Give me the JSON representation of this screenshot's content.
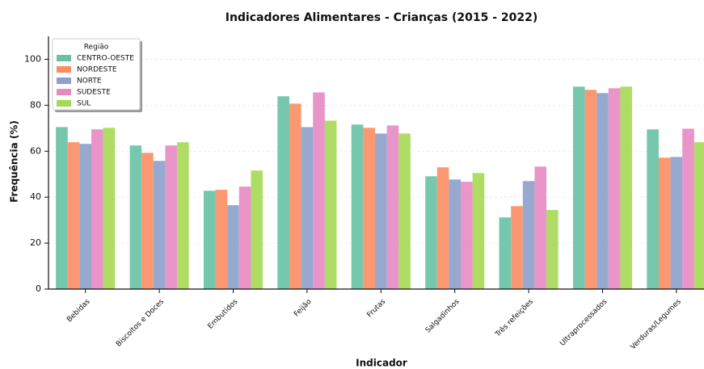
{
  "chart_data": {
    "type": "bar",
    "title": "Indicadores Alimentares - Crianças (2015 - 2022)",
    "x_label": "Indicador",
    "y_label": "Frequência (%)",
    "legend_title": "Região",
    "legend_position": "upper left",
    "grid": true,
    "categories": [
      "Bebidas",
      "Biscoitos e Doces",
      "Embutidos",
      "Feijão",
      "Frutas",
      "Salgadinhos",
      "Três refeições",
      "Ultraprocessados",
      "Verduras/Legumes"
    ],
    "series": [
      {
        "name": "CENTRO-OESTE",
        "color": "#66c2a5",
        "values": [
          70.5,
          62.5,
          42.8,
          83.9,
          71.6,
          49.1,
          31.2,
          88.1,
          69.5
        ]
      },
      {
        "name": "NORDESTE",
        "color": "#fc8d62",
        "values": [
          63.9,
          59.3,
          43.2,
          80.7,
          70.2,
          53.0,
          36.1,
          86.7,
          57.2
        ]
      },
      {
        "name": "NORTE",
        "color": "#8da0cb",
        "values": [
          63.2,
          55.8,
          36.5,
          70.5,
          67.7,
          47.7,
          47.0,
          85.3,
          57.5
        ]
      },
      {
        "name": "SUDESTE",
        "color": "#e78ac3",
        "values": [
          69.5,
          62.5,
          44.6,
          85.6,
          71.2,
          46.7,
          53.3,
          87.4,
          69.8
        ]
      },
      {
        "name": "SUL",
        "color": "#a6d854",
        "values": [
          70.2,
          63.9,
          51.6,
          73.3,
          67.7,
          50.5,
          34.4,
          88.1,
          63.9
        ]
      }
    ],
    "ylim": [
      0,
      110
    ],
    "yticks": [
      0,
      20,
      40,
      60,
      80,
      100
    ]
  }
}
